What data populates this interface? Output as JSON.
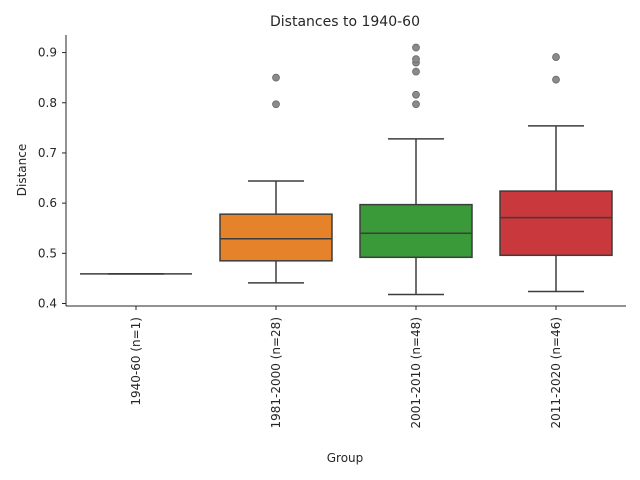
{
  "chart_data": {
    "type": "box",
    "title": "Distances to 1940-60",
    "xlabel": "Group",
    "ylabel": "Distance",
    "ylim": [
      0.395,
      0.935
    ],
    "yticks": [
      0.4,
      0.5,
      0.6,
      0.7,
      0.8,
      0.9
    ],
    "grid": false,
    "categories": [
      "1940-60 (n=1)",
      "1981-2000 (n=28)",
      "2001-2010 (n=48)",
      "2011-2020 (n=46)"
    ],
    "boxes": [
      {
        "category": "1940-60 (n=1)",
        "color": "#1f77b4",
        "min": 0.459,
        "q1": 0.459,
        "median": 0.459,
        "q3": 0.459,
        "max": 0.459,
        "outliers": []
      },
      {
        "category": "1981-2000 (n=28)",
        "color": "#e6832a",
        "min": 0.441,
        "q1": 0.485,
        "median": 0.529,
        "q3": 0.578,
        "max": 0.644,
        "outliers": [
          0.797,
          0.85
        ]
      },
      {
        "category": "2001-2010 (n=48)",
        "color": "#3a9a3a",
        "min": 0.418,
        "q1": 0.492,
        "median": 0.54,
        "q3": 0.597,
        "max": 0.728,
        "outliers": [
          0.797,
          0.816,
          0.862,
          0.88,
          0.887,
          0.91
        ]
      },
      {
        "category": "2011-2020 (n=46)",
        "color": "#c8383c",
        "min": 0.424,
        "q1": 0.496,
        "median": 0.571,
        "q3": 0.624,
        "max": 0.754,
        "outliers": [
          0.846,
          0.891
        ]
      }
    ]
  }
}
